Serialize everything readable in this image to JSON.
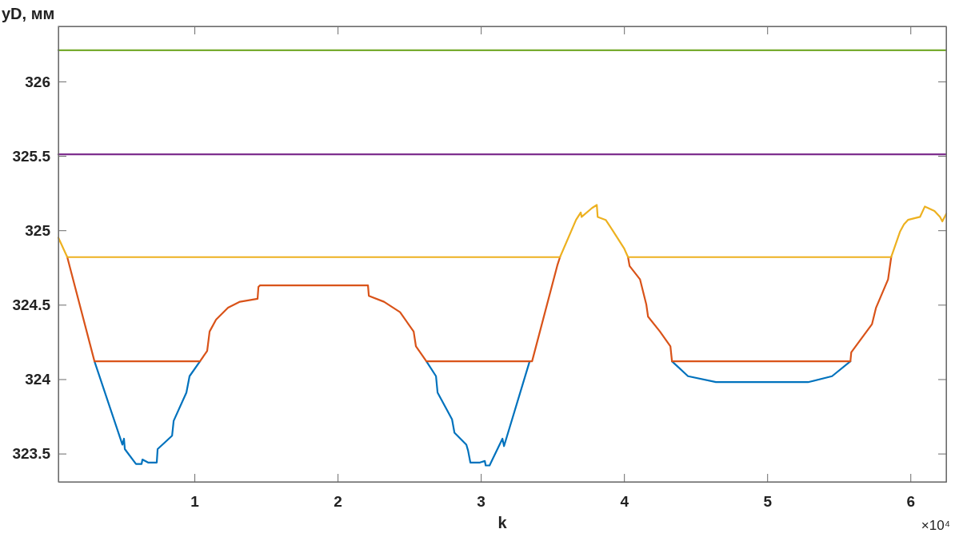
{
  "chart_data": {
    "type": "line",
    "xlabel": "k",
    "ylabel": "yD, мм",
    "annotations": [
      "×10⁴"
    ],
    "xlim": [
      0.05,
      6.25
    ],
    "ylim": [
      323.31,
      326.37
    ],
    "xticks": [
      1,
      2,
      3,
      4,
      5,
      6
    ],
    "yticks": [
      323.5,
      324,
      324.5,
      325,
      325.5,
      326
    ],
    "grid": false,
    "line_style": "solid",
    "marker": "none",
    "series": [
      {
        "color": "#0072bd",
        "x": [
          0.302,
          0.497,
          0.508,
          0.514,
          0.592,
          0.631,
          0.637,
          0.676,
          0.737,
          0.743,
          0.844,
          0.855,
          0.944,
          0.966,
          1.039,
          1.5,
          2.62,
          2.687,
          2.698,
          2.799,
          2.816,
          2.899,
          2.911,
          2.927,
          2.994,
          3.028,
          3.034,
          3.061,
          3.151,
          3.162,
          3.341,
          4.0,
          4.335,
          4.447,
          4.642,
          5.285,
          5.453,
          5.581
        ],
        "values": [
          324.12,
          323.56,
          323.6,
          323.53,
          323.43,
          323.43,
          323.46,
          323.44,
          323.44,
          323.53,
          323.62,
          323.72,
          323.91,
          324.02,
          324.12,
          null,
          324.12,
          324.02,
          323.91,
          323.73,
          323.64,
          323.56,
          323.52,
          323.44,
          323.44,
          323.45,
          323.42,
          323.42,
          323.6,
          323.55,
          324.12,
          null,
          324.12,
          324.02,
          323.98,
          323.98,
          324.02,
          324.12
        ]
      },
      {
        "color": "#d95319",
        "x": [
          0.112,
          0.302,
          1.039,
          1.089,
          1.106,
          1.151,
          1.235,
          1.318,
          1.441,
          1.447,
          1.458,
          2.212,
          2.218,
          2.324,
          2.436,
          2.531,
          2.547,
          2.62,
          3.358,
          3.536,
          3.553,
          3.8,
          4.028,
          4.039,
          4.112,
          4.156,
          4.168,
          4.251,
          4.324,
          4.335,
          5.581,
          5.587,
          5.732,
          5.76,
          5.844,
          5.866
        ],
        "values": [
          324.82,
          324.12,
          324.12,
          324.19,
          324.32,
          324.4,
          324.48,
          324.52,
          324.54,
          324.62,
          324.63,
          324.63,
          324.56,
          324.52,
          324.45,
          324.32,
          324.22,
          324.12,
          324.12,
          324.77,
          324.82,
          null,
          324.82,
          324.76,
          324.67,
          324.5,
          324.42,
          324.32,
          324.22,
          324.12,
          324.12,
          324.18,
          324.37,
          324.48,
          324.67,
          324.82
        ]
      },
      {
        "color": "#edb120",
        "x": [
          0.05,
          0.112,
          3.553,
          3.665,
          3.698,
          3.704,
          3.777,
          3.81,
          3.816,
          3.872,
          3.927,
          4.0,
          4.028,
          5.866,
          5.927,
          5.955,
          5.983,
          6.067,
          6.101,
          6.168,
          6.207,
          6.223,
          6.25
        ],
        "values": [
          324.95,
          324.82,
          324.82,
          325.07,
          325.12,
          325.09,
          325.15,
          325.17,
          325.09,
          325.07,
          324.99,
          324.88,
          324.82,
          324.82,
          324.99,
          325.04,
          325.07,
          325.09,
          325.16,
          325.13,
          325.09,
          325.06,
          325.11
        ]
      },
      {
        "color": "#7e2f8e",
        "x": [
          0.05,
          6.25
        ],
        "values": [
          325.51,
          325.51
        ]
      },
      {
        "color": "#77ac30",
        "x": [
          0.05,
          6.25
        ],
        "values": [
          326.21,
          326.21
        ]
      }
    ]
  }
}
